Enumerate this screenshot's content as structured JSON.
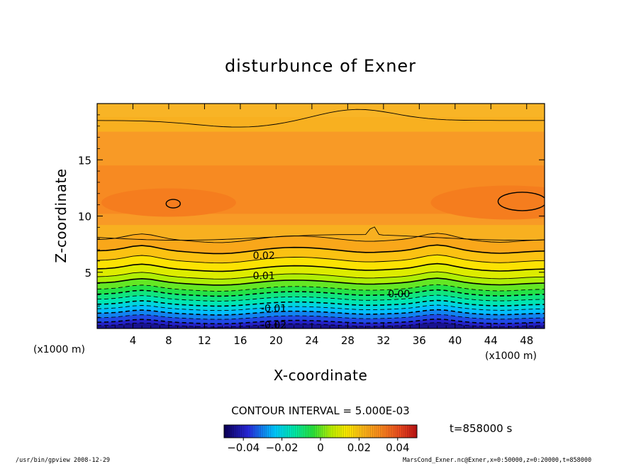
{
  "chart_data": {
    "type": "contour",
    "title": "disturbunce of Exner",
    "xlabel": "X-coordinate",
    "ylabel": "Z-coordinate",
    "x_unit_label": "(x1000 m)",
    "xlim": [
      0,
      50
    ],
    "ylim": [
      0,
      20
    ],
    "x_ticks": [
      4,
      8,
      12,
      16,
      20,
      24,
      28,
      32,
      36,
      40,
      44,
      48
    ],
    "y_ticks": [
      5,
      10,
      15
    ],
    "contour_interval_text": "CONTOUR INTERVAL = 5.000E-03",
    "contour_interval": 0.005,
    "contour_labels": [
      {
        "text": "0.02",
        "x": 17.4,
        "z": 6.5
      },
      {
        "text": "0.01",
        "x": 17.4,
        "z": 4.7
      },
      {
        "text": "0.00",
        "x": 32.5,
        "z": 3.1
      },
      {
        "text": "-0.01",
        "x": 18.3,
        "z": 1.8
      },
      {
        "text": "-0.02",
        "x": 18.3,
        "z": 0.3
      }
    ],
    "colorbar": {
      "range": [
        -0.05,
        0.05
      ],
      "ticks": [
        {
          "value": -0.04,
          "label": "−0.04"
        },
        {
          "value": -0.02,
          "label": "−0.02"
        },
        {
          "value": 0,
          "label": "0"
        },
        {
          "value": 0.02,
          "label": "0.02"
        },
        {
          "value": 0.04,
          "label": "0.04"
        }
      ]
    },
    "time_label": "t=858000 s",
    "footer_left": "/usr/bin/gpview  2008-12-29",
    "footer_right": "MarsCond_Exner.nc@Exner,x=0:50000,z=0:20000,t=858000"
  }
}
